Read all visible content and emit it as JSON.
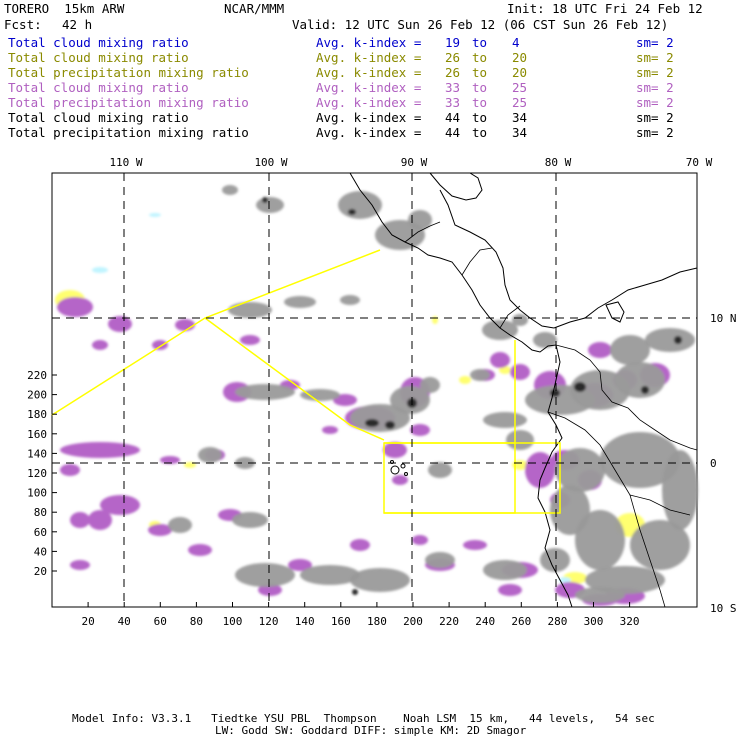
{
  "header": {
    "model": "TORERO  15km ARW",
    "org": "NCAR/MMM",
    "init": "Init: 18 UTC Fri 24 Feb 12",
    "fcst_label": "Fcst:",
    "fcst_value": "42 h",
    "valid": "Valid: 12 UTC Sun 26 Feb 12 (06 CST Sun 26 Feb 12)"
  },
  "legend": [
    {
      "field": "Total cloud mixing ratio",
      "kindex": "Avg. k-index = ",
      "k1": "19",
      "to": "to",
      "k2": "4",
      "sm": "sm= 2",
      "color": "#0000cc"
    },
    {
      "field": "Total cloud mixing ratio",
      "kindex": "Avg. k-index = ",
      "k1": "26",
      "to": "to",
      "k2": "20",
      "sm": "sm= 2",
      "color": "#8a8a00"
    },
    {
      "field": "Total precipitation mixing ratio",
      "kindex": "Avg. k-index = ",
      "k1": "26",
      "to": "to",
      "k2": "20",
      "sm": "sm= 2",
      "color": "#8a8a00"
    },
    {
      "field": "Total cloud mixing ratio",
      "kindex": "Avg. k-index = ",
      "k1": "33",
      "to": "to",
      "k2": "25",
      "sm": "sm= 2",
      "color": "#b060c0"
    },
    {
      "field": "Total precipitation mixing ratio",
      "kindex": "Avg. k-index = ",
      "k1": "33",
      "to": "to",
      "k2": "25",
      "sm": "sm= 2",
      "color": "#b060c0"
    },
    {
      "field": "Total cloud mixing ratio",
      "kindex": "Avg. k-index = ",
      "k1": "44",
      "to": "to",
      "k2": "34",
      "sm": "sm= 2",
      "color": "#000000"
    },
    {
      "field": "Total precipitation mixing ratio",
      "kindex": "Avg. k-index = ",
      "k1": "44",
      "to": "to",
      "k2": "34",
      "sm": "sm= 2",
      "color": "#000000"
    }
  ],
  "map": {
    "lon_labels": [
      "110 W",
      "100 W",
      "90 W",
      "80 W",
      "70 W"
    ],
    "lat_labels": [
      "10 N",
      "0",
      "10 S"
    ],
    "x_ticks": [
      "20",
      "40",
      "60",
      "80",
      "100",
      "120",
      "140",
      "160",
      "180",
      "200",
      "220",
      "240",
      "260",
      "280",
      "300",
      "320"
    ],
    "y_ticks": [
      "220",
      "200",
      "180",
      "160",
      "140",
      "120",
      "100",
      "80",
      "60",
      "40",
      "20"
    ],
    "colors": {
      "cloud_gray": "#9a9a9a",
      "cloud_dark": "#2a2a2a",
      "precip_purple": "#b565c8",
      "cloud_yellow": "#ffff70",
      "domain_box": "#ffff00",
      "trace_cyan": "#c0f4ff"
    }
  },
  "footer": {
    "line1": "Model Info: V3.3.1   Tiedtke YSU PBL  Thompson    Noah LSM  15 km,   44 levels,   54 sec",
    "line2": "LW: Godd SW: Goddard DIFF: simple KM: 2D Smagor"
  }
}
